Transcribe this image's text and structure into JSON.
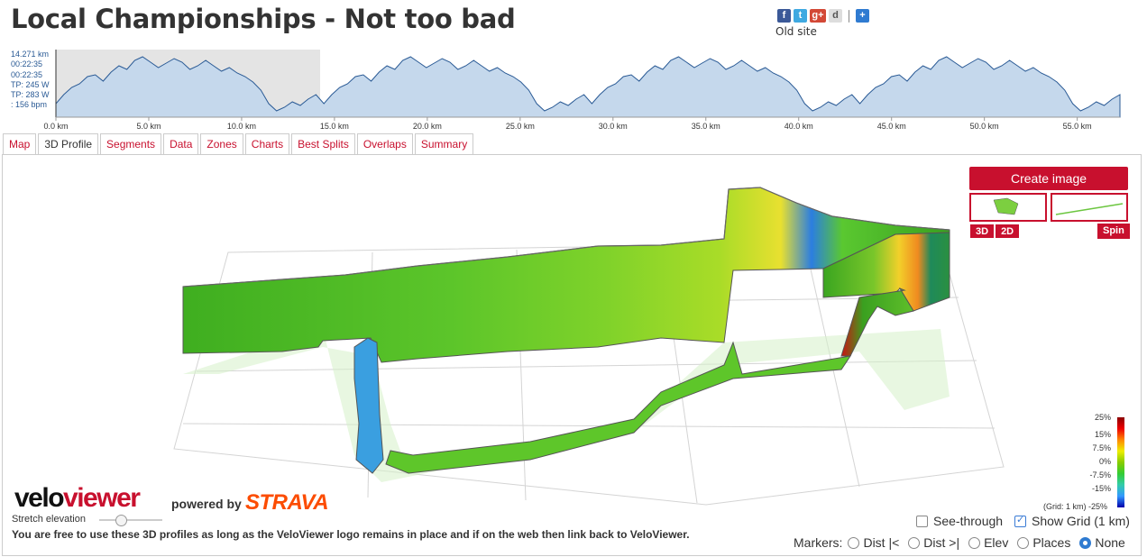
{
  "page": {
    "title": "Local Championships - Not too bad",
    "old_site": "Old site"
  },
  "social": {
    "facebook": "f",
    "twitter": "t",
    "google_plus": "g+",
    "digg": "d",
    "share": "+"
  },
  "readout": {
    "distance": "14.271 km",
    "time1": "00:22:35",
    "time2": "00:22:35",
    "power1": "TP: 245 W",
    "power2": "TP: 283 W",
    "heart_rate": ": 156 bpm"
  },
  "distance_axis": {
    "labels": [
      "0.0 km",
      "5.0 km",
      "10.0 km",
      "15.0 km",
      "20.0 km",
      "25.0 km",
      "30.0 km",
      "35.0 km",
      "40.0 km",
      "45.0 km",
      "50.0 km",
      "55.0 km"
    ]
  },
  "tabs": [
    {
      "label": "Map",
      "active": false
    },
    {
      "label": "3D Profile",
      "active": true
    },
    {
      "label": "Segments",
      "active": false
    },
    {
      "label": "Data",
      "active": false
    },
    {
      "label": "Zones",
      "active": false
    },
    {
      "label": "Charts",
      "active": false
    },
    {
      "label": "Best Splits",
      "active": false
    },
    {
      "label": "Overlaps",
      "active": false
    },
    {
      "label": "Summary",
      "active": false
    }
  ],
  "controls": {
    "create_image": "Create image",
    "btn_3d": "3D",
    "btn_2d": "2D",
    "spin": "Spin",
    "stretch_label": "Stretch elevation",
    "see_through": "See-through",
    "show_grid": "Show Grid (1 km)",
    "see_through_checked": false,
    "show_grid_checked": true
  },
  "gradient_legend": {
    "labels": [
      "25%",
      "15%",
      "7.5%",
      "0%",
      "-7.5%",
      "-15%",
      "-25%"
    ],
    "grid_note": "(Grid: 1 km)"
  },
  "branding": {
    "velo": "velo",
    "viewer": "viewer",
    "powered_by": "powered by",
    "strava": "STRAVA"
  },
  "footer": {
    "free_text": "You are free to use these 3D profiles as long as the VeloViewer logo remains in place and if on the web then link back to VeloViewer."
  },
  "markers": {
    "label": "Markers:",
    "options": [
      "Dist |<",
      "Dist >|",
      "Elev",
      "Places",
      "None"
    ],
    "selected": "None"
  },
  "colors": {
    "accent": "#c8102e",
    "elevation_fill": "#c5d8ec",
    "elevation_line": "#2a5a95",
    "strava": "#fc4c02"
  }
}
